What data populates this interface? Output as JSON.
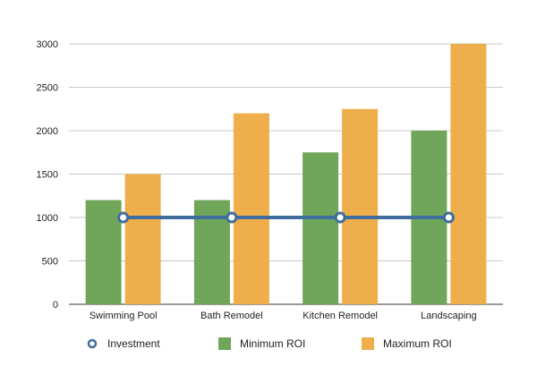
{
  "chart_data": {
    "type": "bar",
    "categories": [
      "Swimming Pool",
      "Bath Remodel",
      "Kitchen Remodel",
      "Landscaping"
    ],
    "series": [
      {
        "name": "Minimum ROI",
        "kind": "bar",
        "color": "#6fa65a",
        "values": [
          1200,
          1200,
          1750,
          2000
        ]
      },
      {
        "name": "Maximum ROI",
        "kind": "bar",
        "color": "#eeae4b",
        "values": [
          1500,
          2200,
          2250,
          3000
        ]
      },
      {
        "name": "Investment",
        "kind": "line",
        "color": "#3f6d9d",
        "values": [
          1000,
          1000,
          1000,
          1000
        ]
      }
    ],
    "yticks": [
      0,
      500,
      1000,
      1500,
      2000,
      2500,
      3000
    ],
    "ylim": [
      0,
      3000
    ],
    "grid": true,
    "legend_position": "bottom",
    "legend": [
      "Investment",
      "Minimum ROI",
      "Maximum ROI"
    ]
  }
}
